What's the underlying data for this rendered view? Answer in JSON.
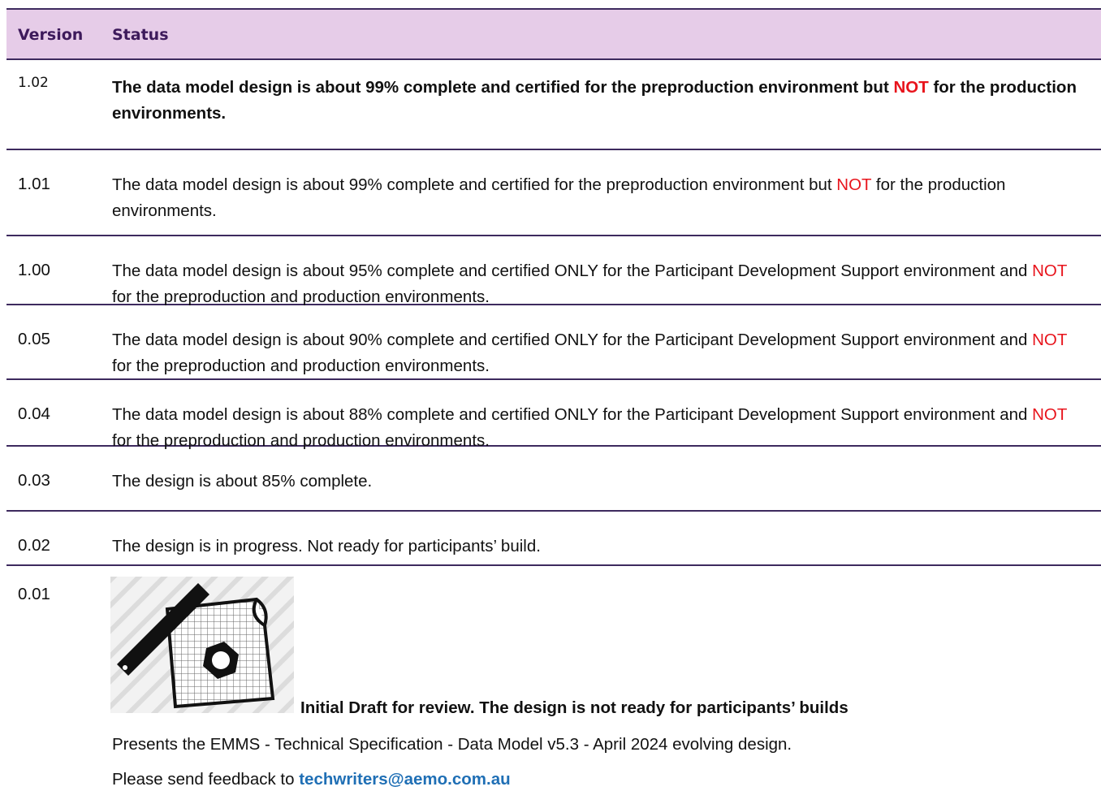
{
  "table": {
    "header": [
      "Version",
      "Status"
    ],
    "rows": [
      {
        "version": "1.02",
        "status": [
          "The data model design is about 99% complete and certified for the preproduction environment but ",
          "NOT",
          " for the production environments."
        ]
      },
      {
        "version": "1.01",
        "status": [
          "The data model design is about 99% complete and certified for the preproduction environment but ",
          "NOT",
          " for the production environments."
        ]
      },
      {
        "version": "1.00",
        "status": [
          "The data model design is about 95% complete and certified ONLY for the Participant Development Support environment and ",
          "NOT",
          " for the preproduction and production environments."
        ]
      },
      {
        "version": "0.05",
        "status": [
          "The data model design is about 90% complete and certified ONLY for the Participant Development Support environment and ",
          "NOT",
          " for the preproduction and production environments."
        ]
      },
      {
        "version": "0.04",
        "status": [
          "The data model design is about 88% complete and certified ONLY for the Participant Development Support environment and ",
          "NOT",
          " for the preproduction and production environments."
        ]
      },
      {
        "version": "0.03",
        "status": [
          "The design is about 85% complete."
        ]
      },
      {
        "version": "0.02",
        "status": [
          "The design is in progress. Not ready for participants’ build."
        ]
      }
    ],
    "draft": {
      "version": "0.01",
      "caption": "Initial Draft for review. The design is not ready for participants’ builds",
      "description": "Presents the EMMS - Technical Specification - Data Model v5.3 - April 2024 evolving design.",
      "feedback": "Please send feedback to",
      "email": "techwriters@aemo.com.au"
    }
  }
}
